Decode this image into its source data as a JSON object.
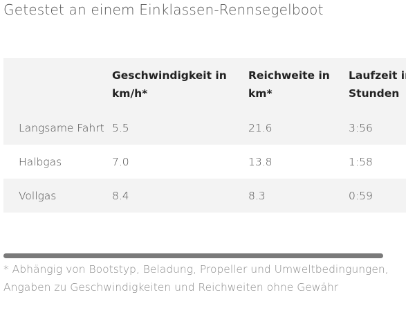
{
  "heading": "Getestet an einem Einklassen-Rennsegelboot",
  "table": {
    "headers": [
      "",
      "Geschwindigkeit in km/h*",
      "Reichweite in km*",
      "Laufzeit in Stunden"
    ],
    "rows": [
      [
        "Langsame Fahrt",
        "5.5",
        "21.6",
        "3:56"
      ],
      [
        "Halbgas",
        "7.0",
        "13.8",
        "1:58"
      ],
      [
        "Vollgas",
        "8.4",
        "8.3",
        "0:59"
      ]
    ]
  },
  "footnote": "* Abhängig von Bootstyp, Beladung, Propeller und Umweltbedingungen, Angaben zu Geschwindigkeiten und Reichweiten ohne Gewähr",
  "colors": {
    "row_shade": "#f3f3f3",
    "scrollbar_thumb": "#7a7a7a"
  }
}
